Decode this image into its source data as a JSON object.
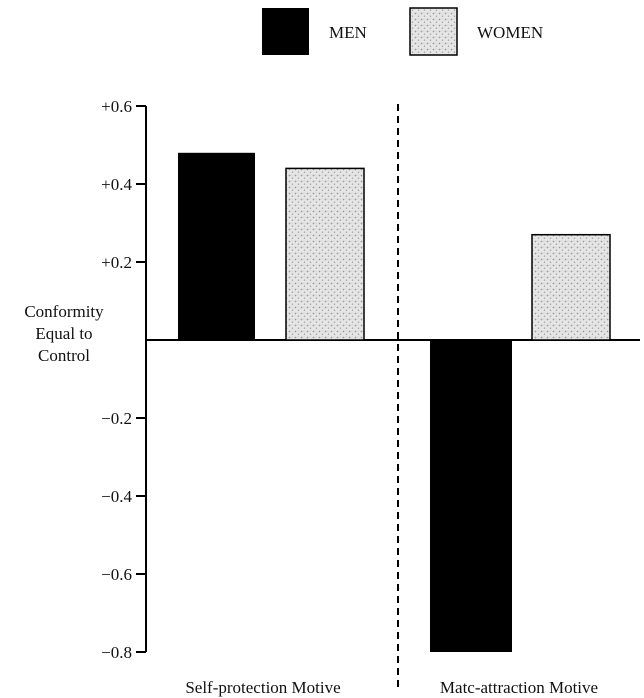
{
  "chart_data": {
    "type": "bar",
    "categories": [
      "Self-protection Motive",
      "Matc-attraction Motive"
    ],
    "series": [
      {
        "name": "MEN",
        "values": [
          0.48,
          -0.8
        ],
        "color": "#000000",
        "pattern": "solid"
      },
      {
        "name": "WOMEN",
        "values": [
          0.44,
          0.27
        ],
        "color": "#d9d9d9",
        "pattern": "stippled"
      }
    ],
    "ylim": [
      -0.8,
      0.6
    ],
    "yticks": [
      {
        "value": 0.6,
        "label": "+0.6"
      },
      {
        "value": 0.4,
        "label": "+0.4"
      },
      {
        "value": 0.2,
        "label": "+0.2"
      },
      {
        "value": -0.2,
        "label": "−0.2"
      },
      {
        "value": -0.4,
        "label": "−0.4"
      },
      {
        "value": -0.6,
        "label": "−0.6"
      },
      {
        "value": -0.8,
        "label": "−0.8"
      }
    ],
    "zero_label_lines": [
      "Conformity",
      "Equal to",
      "Control"
    ],
    "legend": {
      "position": "top-center"
    },
    "grid": false,
    "divider": "dashed vertical line between motives"
  }
}
